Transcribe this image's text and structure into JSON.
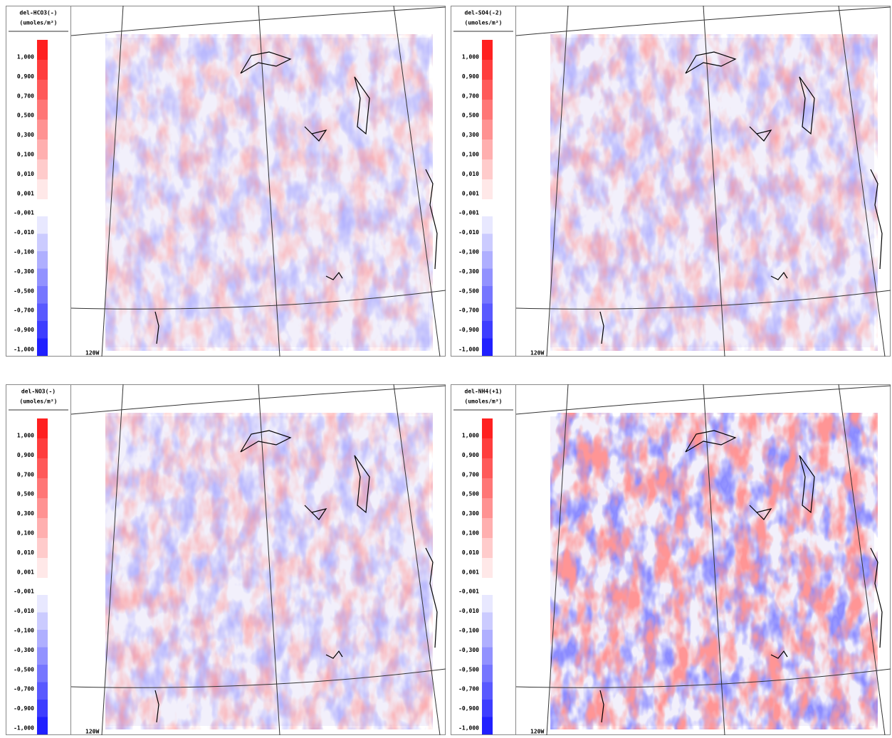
{
  "panels": [
    {
      "title": "del-HCO3(-)",
      "units": "(umoles/m²)",
      "map_label": "120W"
    },
    {
      "title": "del-SO4(-2)",
      "units": "(umoles/m²)",
      "map_label": "120W"
    },
    {
      "title": "del-NO3(-)",
      "units": "(umoles/m²)",
      "map_label": "120W"
    },
    {
      "title": "del-NH4(+1)",
      "units": "(umoles/m²)",
      "map_label": "120W"
    }
  ],
  "colorbar": {
    "labels": [
      "1,000",
      "0,900",
      "0,700",
      "0,500",
      "0,300",
      "0,100",
      "0,010",
      "0,001",
      "-0,001",
      "-0,010",
      "-0,100",
      "-0,300",
      "-0,500",
      "-0,700",
      "-0,900",
      "-1,000"
    ]
  }
}
